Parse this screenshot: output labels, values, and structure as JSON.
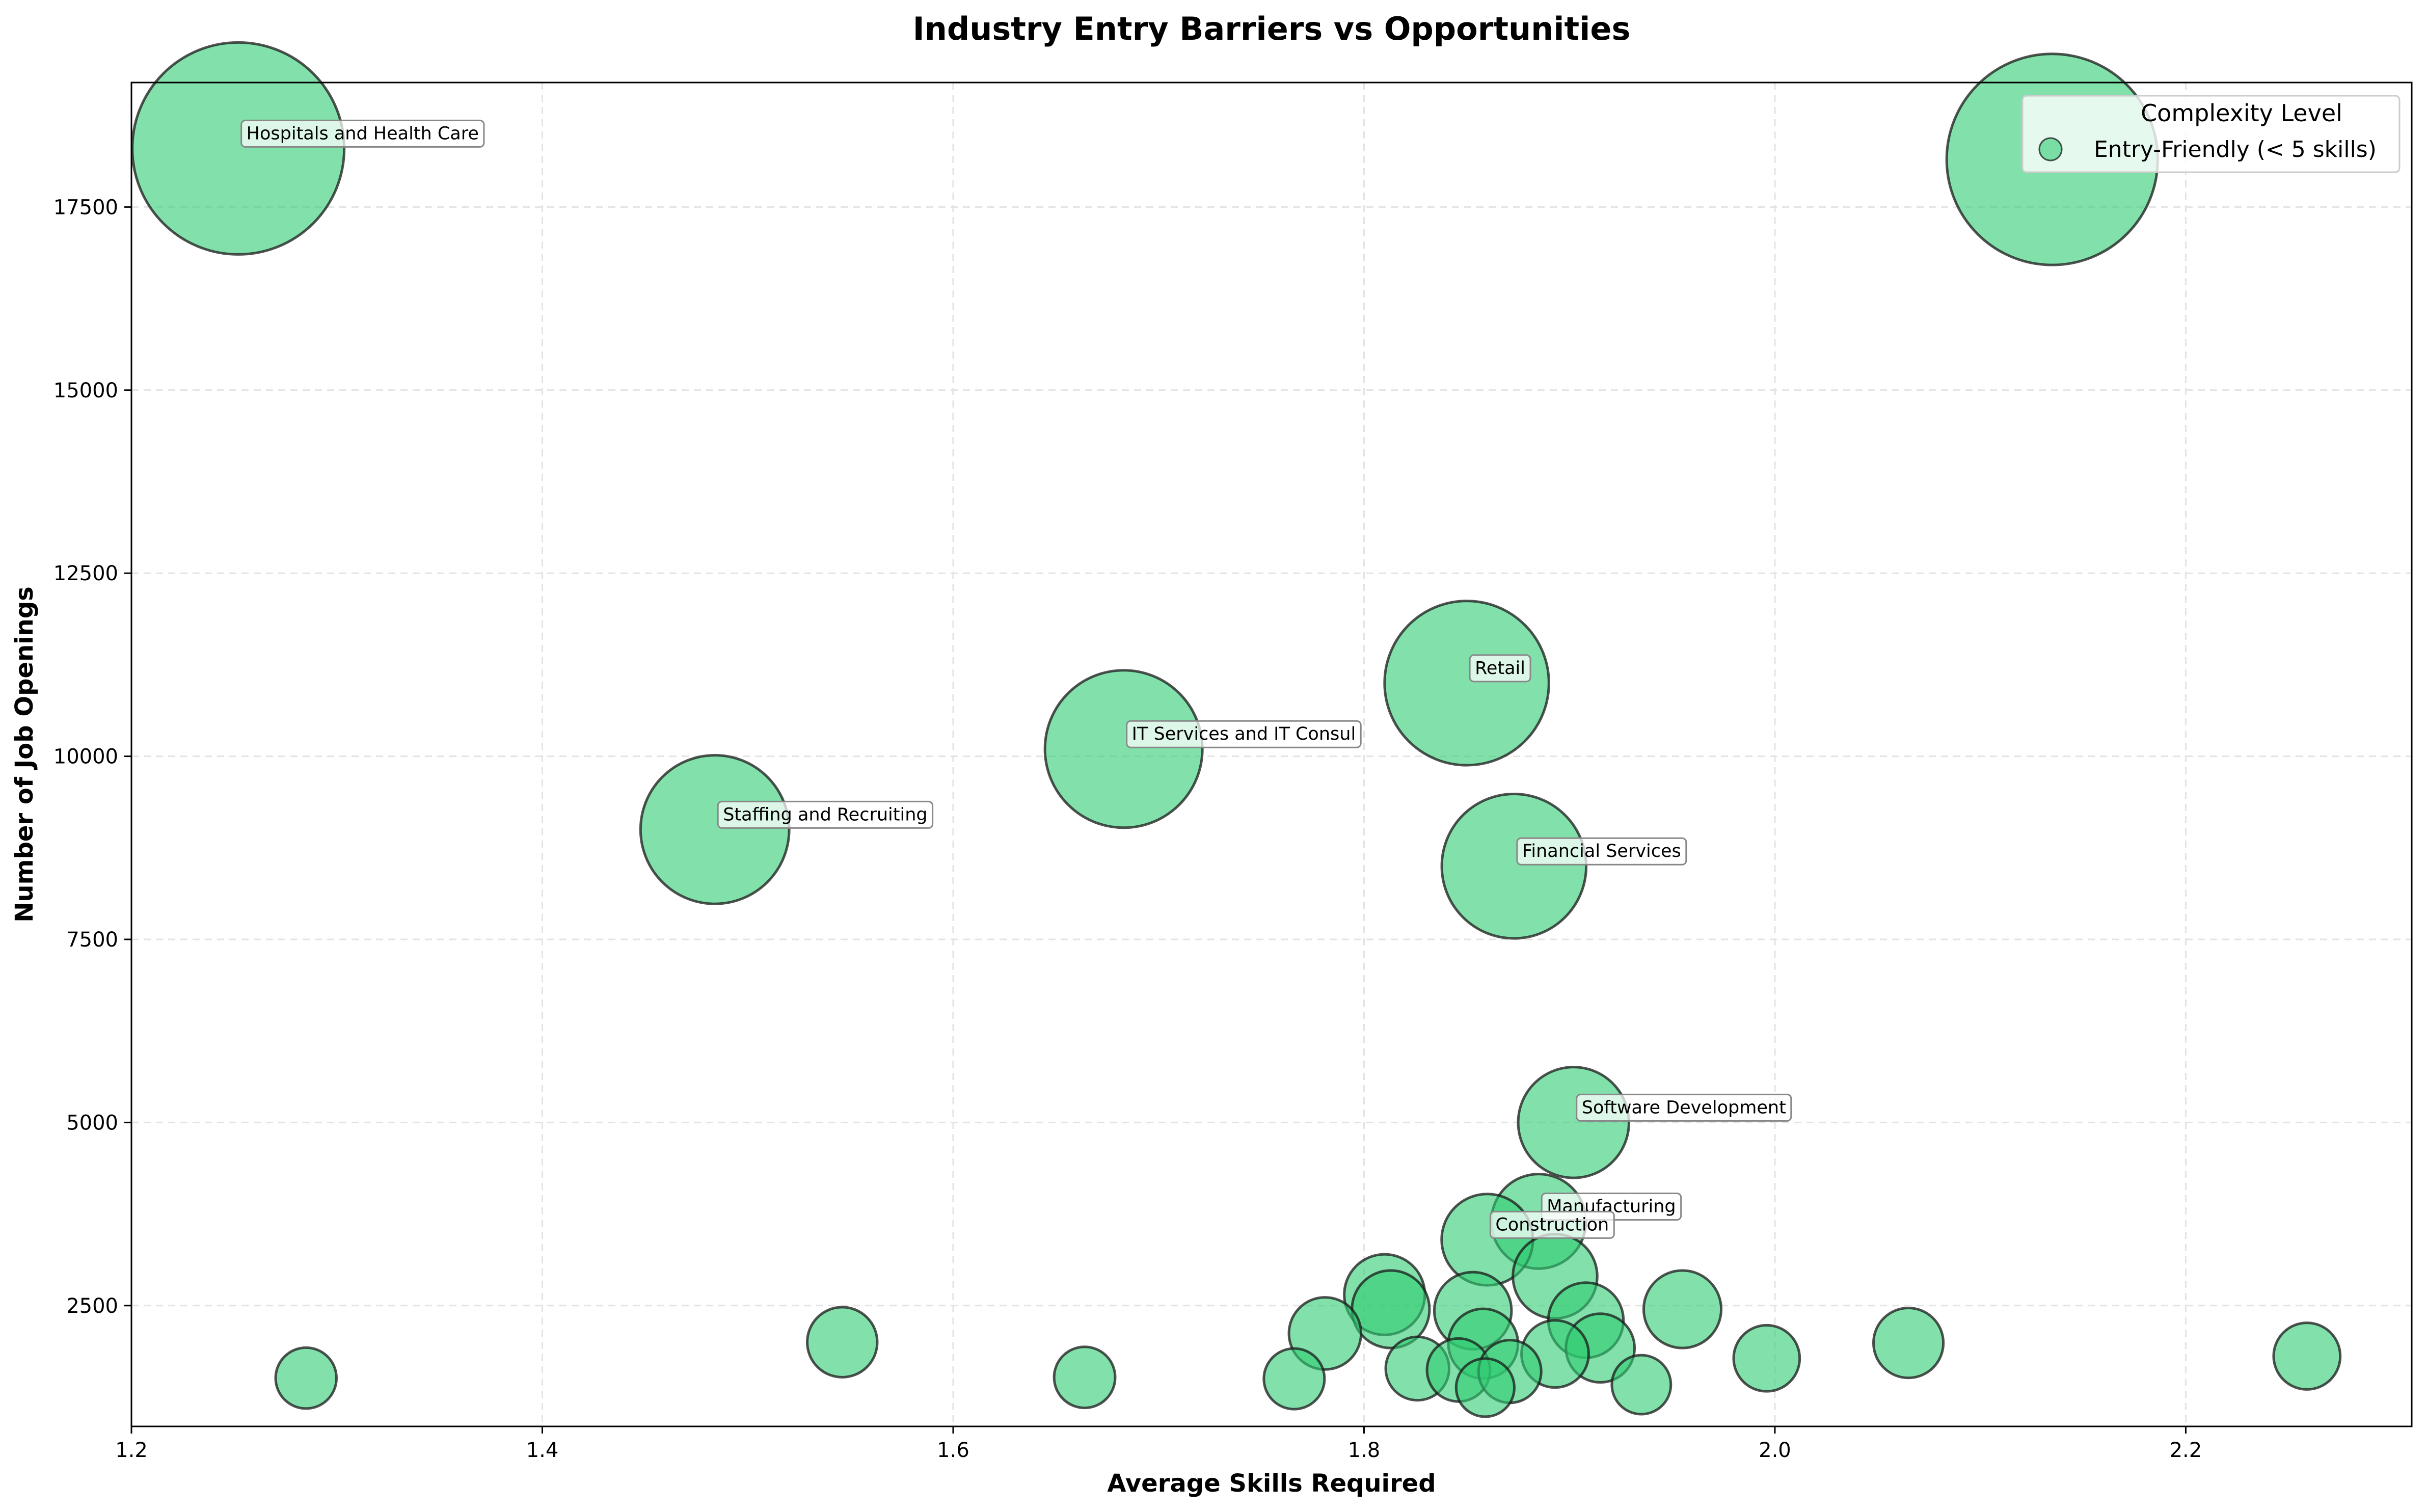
{
  "chart_data": {
    "type": "scatter",
    "title": "Industry Entry Barriers vs Opportunities",
    "xlabel": "Average Skills Required",
    "ylabel": "Number of Job Openings",
    "xlim": [
      1.2,
      2.31
    ],
    "ylim": [
      850,
      19200
    ],
    "x_ticks": [
      1.2,
      1.4,
      1.6,
      1.8,
      2.0,
      2.2
    ],
    "x_tick_labels": [
      "1.2",
      "1.4",
      "1.6",
      "1.8",
      "2.0",
      "2.2"
    ],
    "y_ticks": [
      2500,
      5000,
      7500,
      10000,
      12500,
      15000,
      17500
    ],
    "y_tick_labels": [
      "2500",
      "5000",
      "7500",
      "10000",
      "12500",
      "15000",
      "17500"
    ],
    "grid": true,
    "legend": {
      "title": "Complexity Level",
      "placement": "upper right",
      "entries": [
        {
          "label": "Entry-Friendly (< 5 skills)",
          "color": "#2ecc71"
        }
      ]
    },
    "marker_color": "#2ecc71",
    "marker_alpha": 0.6,
    "edge_color": "#1a1a1a",
    "series": [
      {
        "name": "Entry-Friendly (< 5 skills)",
        "points": [
          {
            "x": 1.252,
            "y": 18300,
            "label": "Hospitals and Health Care"
          },
          {
            "x": 2.135,
            "y": 18150,
            "label": ""
          },
          {
            "x": 1.85,
            "y": 11000,
            "label": "Retail"
          },
          {
            "x": 1.683,
            "y": 10100,
            "label": "IT Services and IT Consul"
          },
          {
            "x": 1.484,
            "y": 9000,
            "label": "Staffing and Recruiting"
          },
          {
            "x": 1.873,
            "y": 8500,
            "label": "Financial Services"
          },
          {
            "x": 1.902,
            "y": 5000,
            "label": "Software Development"
          },
          {
            "x": 1.885,
            "y": 3650,
            "label": "Manufacturing"
          },
          {
            "x": 1.86,
            "y": 3400,
            "label": "Construction"
          },
          {
            "x": 1.893,
            "y": 2900,
            "label": ""
          },
          {
            "x": 1.81,
            "y": 2650,
            "label": ""
          },
          {
            "x": 1.813,
            "y": 2450,
            "label": ""
          },
          {
            "x": 1.853,
            "y": 2430,
            "label": ""
          },
          {
            "x": 1.955,
            "y": 2450,
            "label": ""
          },
          {
            "x": 1.908,
            "y": 2300,
            "label": ""
          },
          {
            "x": 1.781,
            "y": 2120,
            "label": ""
          },
          {
            "x": 1.858,
            "y": 1980,
            "label": ""
          },
          {
            "x": 1.915,
            "y": 1920,
            "label": ""
          },
          {
            "x": 1.546,
            "y": 2000,
            "label": ""
          },
          {
            "x": 2.065,
            "y": 1990,
            "label": ""
          },
          {
            "x": 1.893,
            "y": 1840,
            "label": ""
          },
          {
            "x": 1.996,
            "y": 1780,
            "label": ""
          },
          {
            "x": 2.259,
            "y": 1810,
            "label": ""
          },
          {
            "x": 1.826,
            "y": 1640,
            "label": ""
          },
          {
            "x": 1.846,
            "y": 1620,
            "label": ""
          },
          {
            "x": 1.871,
            "y": 1600,
            "label": ""
          },
          {
            "x": 1.285,
            "y": 1510,
            "label": ""
          },
          {
            "x": 1.664,
            "y": 1520,
            "label": ""
          },
          {
            "x": 1.766,
            "y": 1500,
            "label": ""
          },
          {
            "x": 1.935,
            "y": 1420,
            "label": ""
          },
          {
            "x": 1.859,
            "y": 1380,
            "label": ""
          }
        ]
      }
    ]
  }
}
